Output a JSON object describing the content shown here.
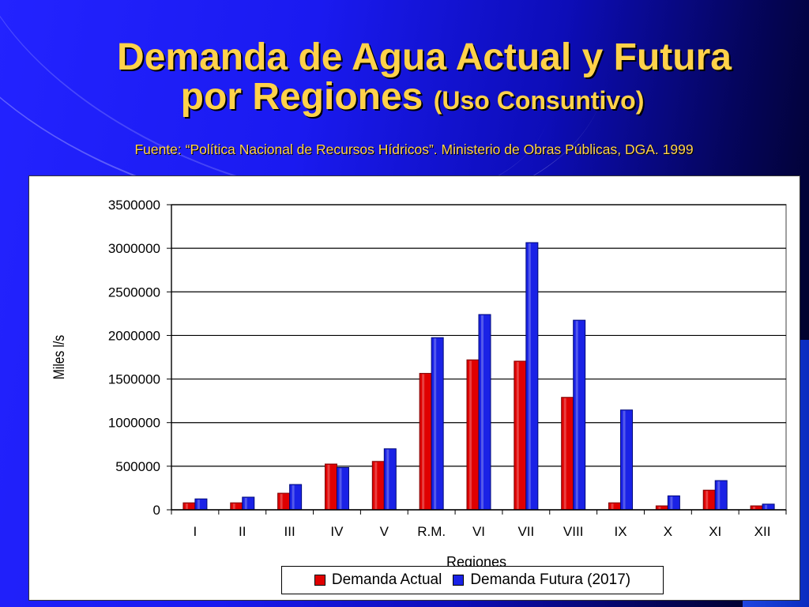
{
  "slide": {
    "title_line1": "Demanda de Agua  Actual y Futura",
    "title_line2": "por Regiones",
    "title_paren": "(Uso Consuntivo)",
    "source": "Fuente: “Política Nacional de Recursos Hídricos”. Ministerio de Obras Públicas, DGA. 1999"
  },
  "colors": {
    "actual": "#e00000",
    "futura": "#1a22e6",
    "title": "#ffd24a"
  },
  "chart_data": {
    "type": "bar",
    "categories": [
      "I",
      "II",
      "III",
      "IV",
      "V",
      "R.M.",
      "VI",
      "VII",
      "VIII",
      "IX",
      "X",
      "XI",
      "XII"
    ],
    "series": [
      {
        "name": "Demanda Actual",
        "values": [
          80000,
          80000,
          190000,
          525000,
          555000,
          1565000,
          1720000,
          1705000,
          1290000,
          80000,
          45000,
          225000,
          45000
        ]
      },
      {
        "name": "Demanda Futura (2017)",
        "values": [
          125000,
          145000,
          290000,
          485000,
          700000,
          1975000,
          2240000,
          3065000,
          2175000,
          1145000,
          160000,
          335000,
          65000
        ]
      }
    ],
    "xlabel": "Regiones",
    "ylabel": "Miles  l/s",
    "ylim": [
      0,
      3500000
    ],
    "yticks": [
      0,
      500000,
      1000000,
      1500000,
      2000000,
      2500000,
      3000000,
      3500000
    ],
    "grid": true,
    "legend_position": "bottom"
  }
}
